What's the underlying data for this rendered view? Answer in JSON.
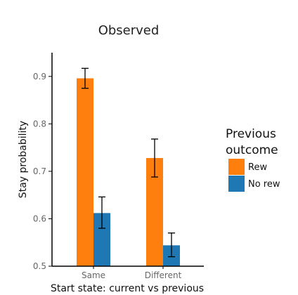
{
  "chart_data": {
    "type": "bar",
    "title": "Observed",
    "xlabel": "Start state: current vs previous",
    "ylabel": "Stay probability",
    "categories": [
      "Same",
      "Different"
    ],
    "ylim": [
      0.5,
      0.95
    ],
    "yticks": [
      0.5,
      0.6,
      0.7,
      0.8,
      0.9
    ],
    "grid": false,
    "legend": {
      "title_lines": [
        "Previous",
        "outcome"
      ],
      "position": "right"
    },
    "series": [
      {
        "name": "Rew",
        "color": "#ff7f0e",
        "values": [
          0.896,
          0.728
        ],
        "err_low": [
          0.875,
          0.688
        ],
        "err_high": [
          0.917,
          0.768
        ]
      },
      {
        "name": "No rew",
        "color": "#1f77b4",
        "values": [
          0.612,
          0.544
        ],
        "err_low": [
          0.58,
          0.52
        ],
        "err_high": [
          0.646,
          0.57
        ]
      }
    ]
  }
}
